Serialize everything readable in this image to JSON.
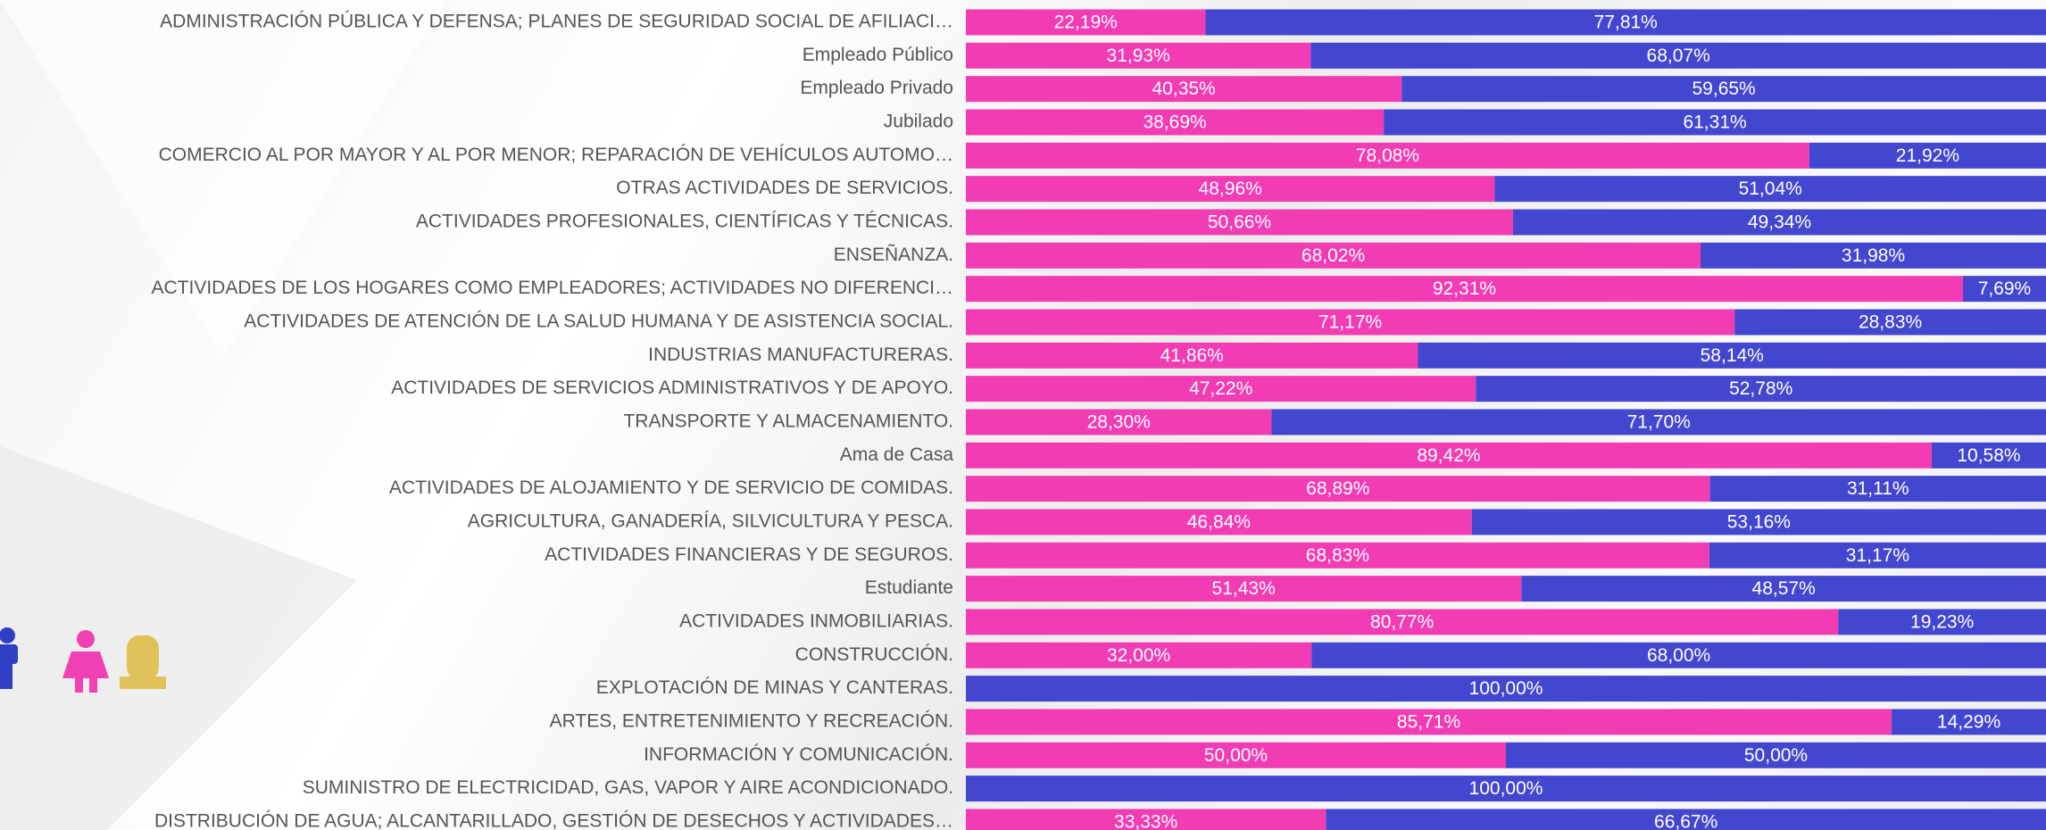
{
  "chart_data": {
    "type": "bar",
    "orientation": "horizontal",
    "stacked": true,
    "categories": [
      "ADMINISTRACIÓN PÚBLICA Y DEFENSA; PLANES DE SEGURIDAD SOCIAL DE AFILIACI…",
      "Empleado Público",
      "Empleado Privado",
      "Jubilado",
      "COMERCIO AL POR MAYOR Y AL POR MENOR; REPARACIÓN DE VEHÍCULOS AUTOMO…",
      "OTRAS ACTIVIDADES DE SERVICIOS.",
      "ACTIVIDADES PROFESIONALES, CIENTÍFICAS Y TÉCNICAS.",
      "ENSEÑANZA.",
      "ACTIVIDADES DE LOS HOGARES COMO EMPLEADORES; ACTIVIDADES NO DIFERENCI…",
      "ACTIVIDADES DE ATENCIÓN DE LA SALUD HUMANA Y DE ASISTENCIA SOCIAL.",
      "INDUSTRIAS MANUFACTURERAS.",
      "ACTIVIDADES DE SERVICIOS ADMINISTRATIVOS Y DE APOYO.",
      "TRANSPORTE Y ALMACENAMIENTO.",
      "Ama de Casa",
      "ACTIVIDADES DE ALOJAMIENTO Y DE SERVICIO DE COMIDAS.",
      "AGRICULTURA, GANADERÍA, SILVICULTURA Y PESCA.",
      "ACTIVIDADES FINANCIERAS Y DE SEGUROS.",
      "Estudiante",
      "ACTIVIDADES INMOBILIARIAS.",
      "CONSTRUCCIÓN.",
      "EXPLOTACIÓN DE MINAS Y CANTERAS.",
      "ARTES, ENTRETENIMIENTO Y RECREACIÓN.",
      "INFORMACIÓN Y COMUNICACIÓN.",
      "SUMINISTRO DE ELECTRICIDAD, GAS, VAPOR Y AIRE ACONDICIONADO.",
      "DISTRIBUCIÓN DE AGUA; ALCANTARILLADO, GESTIÓN DE DESECHOS Y ACTIVIDADES…"
    ],
    "series": [
      {
        "color": "#f23cb4",
        "values": [
          22.19,
          31.93,
          40.35,
          38.69,
          78.08,
          48.96,
          50.66,
          68.02,
          92.31,
          71.17,
          41.86,
          47.22,
          28.3,
          89.42,
          68.89,
          46.84,
          68.83,
          51.43,
          80.77,
          32.0,
          0,
          85.71,
          50.0,
          0,
          33.33
        ],
        "value_labels": [
          "22,19%",
          "31,93%",
          "40,35%",
          "38,69%",
          "78,08%",
          "48,96%",
          "50,66%",
          "68,02%",
          "92,31%",
          "71,17%",
          "41,86%",
          "47,22%",
          "28,30%",
          "89,42%",
          "68,89%",
          "46,84%",
          "68,83%",
          "51,43%",
          "80,77%",
          "32,00%",
          null,
          "85,71%",
          "50,00%",
          null,
          "33,33%"
        ]
      },
      {
        "color": "#4347cf",
        "values": [
          77.81,
          68.07,
          59.65,
          61.31,
          21.92,
          51.04,
          49.34,
          31.98,
          7.69,
          28.83,
          58.14,
          52.78,
          71.7,
          10.58,
          31.11,
          53.16,
          31.17,
          48.57,
          19.23,
          68.0,
          100.0,
          14.29,
          50.0,
          100.0,
          66.67
        ],
        "value_labels": [
          "77,81%",
          "68,07%",
          "59,65%",
          "61,31%",
          "21,92%",
          "51,04%",
          "49,34%",
          "31,98%",
          "7,69%",
          "28,83%",
          "58,14%",
          "52,78%",
          "71,70%",
          "10,58%",
          "31,11%",
          "53,16%",
          "31,17%",
          "48,57%",
          "19,23%",
          "68,00%",
          "100,00%",
          "14,29%",
          "50,00%",
          "100,00%",
          "66,67%"
        ]
      }
    ],
    "xlim": [
      0,
      100
    ]
  }
}
